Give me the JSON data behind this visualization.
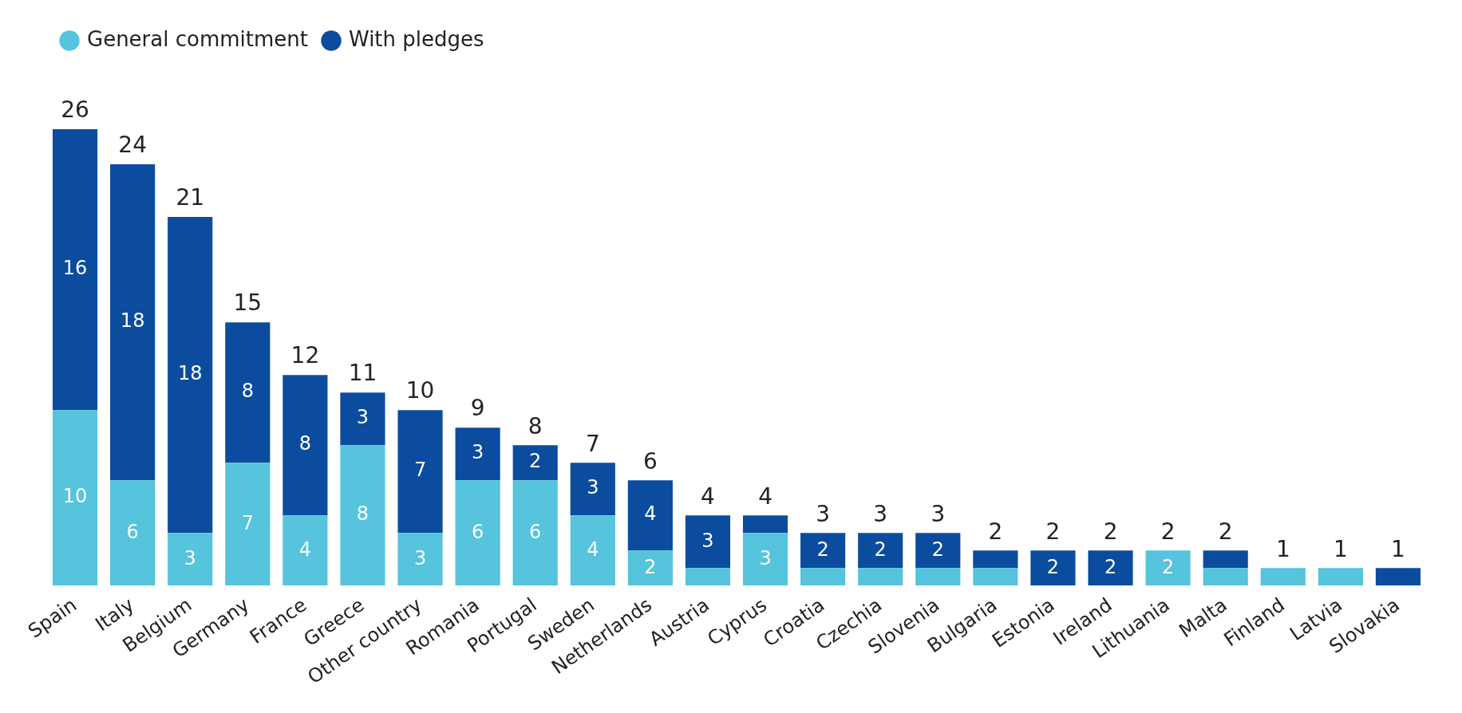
{
  "chart_data": {
    "type": "bar",
    "stacked": true,
    "legend": "top left",
    "categories": [
      "Spain",
      "Italy",
      "Belgium",
      "Germany",
      "France",
      "Greece",
      "Other country",
      "Romania",
      "Portugal",
      "Sweden",
      "Netherlands",
      "Austria",
      "Cyprus",
      "Croatia",
      "Czechia",
      "Slovenia",
      "Bulgaria",
      "Estonia",
      "Ireland",
      "Lithuania",
      "Malta",
      "Finland",
      "Latvia",
      "Slovakia"
    ],
    "series": [
      {
        "name": "General commitment",
        "color": "#55c4dc",
        "values": [
          10,
          6,
          3,
          7,
          4,
          8,
          3,
          6,
          6,
          4,
          2,
          1,
          3,
          1,
          1,
          1,
          1,
          0,
          0,
          2,
          1,
          1,
          1,
          0
        ],
        "value_labels": [
          "10",
          "6",
          "3",
          "7",
          "4",
          "8",
          "3",
          "6",
          "6",
          "4",
          "2",
          null,
          "3",
          null,
          null,
          null,
          null,
          null,
          null,
          "2",
          null,
          null,
          null,
          null
        ]
      },
      {
        "name": "With pledges",
        "color": "#0b4c9e",
        "values": [
          16,
          18,
          18,
          8,
          8,
          3,
          7,
          3,
          2,
          3,
          4,
          3,
          1,
          2,
          2,
          2,
          1,
          2,
          2,
          0,
          1,
          0,
          0,
          1
        ],
        "value_labels": [
          "16",
          "18",
          "18",
          "8",
          "8",
          "3",
          "7",
          "3",
          "2",
          "3",
          "4",
          "3",
          null,
          "2",
          "2",
          "2",
          null,
          "2",
          "2",
          null,
          null,
          null,
          null,
          null
        ]
      }
    ],
    "totals": [
      "26",
      "24",
      "21",
      "15",
      "12",
      "11",
      "10",
      "9",
      "8",
      "7",
      "6",
      "4",
      "4",
      "3",
      "3",
      "3",
      "2",
      "2",
      "2",
      "2",
      "2",
      "1",
      "1",
      "1"
    ]
  }
}
